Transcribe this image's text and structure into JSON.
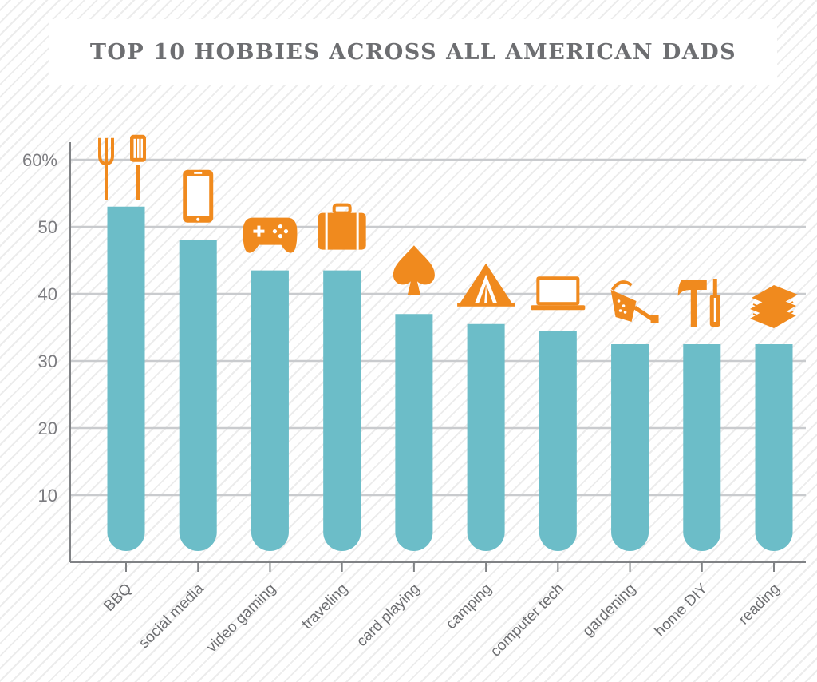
{
  "title": "TOP 10 HOBBIES ACROSS ALL AMERICAN DADS",
  "chart_data": {
    "type": "bar",
    "title": "TOP 10 HOBBIES ACROSS ALL AMERICAN DADS",
    "xlabel": "",
    "ylabel": "",
    "ylim": [
      0,
      60
    ],
    "yticks": [
      10,
      20,
      30,
      40,
      50,
      60
    ],
    "ytick_labels": [
      "10",
      "20",
      "30",
      "40",
      "50",
      "60%"
    ],
    "grid": true,
    "bar_color": "#6cbdc8",
    "icon_color": "#f08a1e",
    "categories": [
      "BBQ",
      "social media",
      "video gaming",
      "traveling",
      "card playing",
      "camping",
      "computer tech",
      "gardening",
      "home DIY",
      "reading"
    ],
    "values": [
      53,
      48,
      43.5,
      43.5,
      37,
      35.5,
      34.5,
      32.5,
      32.5,
      32.5
    ],
    "icons": [
      "bbq-tools-icon",
      "smartphone-icon",
      "gamepad-icon",
      "suitcase-icon",
      "spade-icon",
      "tent-icon",
      "laptop-icon",
      "watering-can-icon",
      "hammer-screwdriver-icon",
      "books-icon"
    ]
  }
}
